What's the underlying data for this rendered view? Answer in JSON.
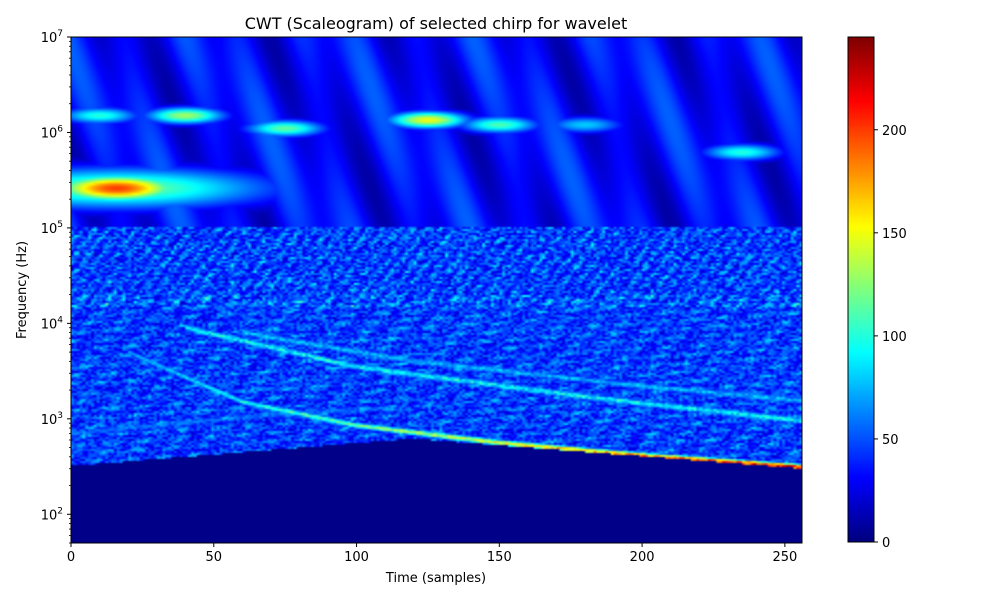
{
  "chart_data": {
    "type": "heatmap",
    "title": "CWT (Scaleogram) of selected chirp for wavelet",
    "xlabel": "Time (samples)",
    "ylabel": "Frequency (Hz)",
    "xlim": [
      0,
      256
    ],
    "ylim": [
      50,
      10000000
    ],
    "yscale": "log",
    "colormap": "jet",
    "x_ticks": [
      {
        "value": 0,
        "label": "0"
      },
      {
        "value": 50,
        "label": "50"
      },
      {
        "value": 100,
        "label": "100"
      },
      {
        "value": 150,
        "label": "150"
      },
      {
        "value": 200,
        "label": "200"
      },
      {
        "value": 250,
        "label": "250"
      }
    ],
    "y_ticks": [
      {
        "value": 100,
        "base": "10",
        "exp": "2"
      },
      {
        "value": 1000,
        "base": "10",
        "exp": "3"
      },
      {
        "value": 10000,
        "base": "10",
        "exp": "4"
      },
      {
        "value": 100000,
        "base": "10",
        "exp": "5"
      },
      {
        "value": 1000000,
        "base": "10",
        "exp": "6"
      },
      {
        "value": 10000000,
        "base": "10",
        "exp": "7"
      }
    ],
    "colorbar": {
      "range": [
        0,
        245
      ],
      "ticks": [
        {
          "value": 0,
          "label": "0"
        },
        {
          "value": 50,
          "label": "50"
        },
        {
          "value": 100,
          "label": "100"
        },
        {
          "value": 150,
          "label": "150"
        },
        {
          "value": 200,
          "label": "200"
        }
      ]
    },
    "features": {
      "main_chirp": {
        "points": [
          [
            20,
            5000
          ],
          [
            60,
            1500
          ],
          [
            100,
            850
          ],
          [
            150,
            560
          ],
          [
            200,
            410
          ],
          [
            256,
            310
          ]
        ],
        "peak": 240
      },
      "chirp_harmonics": [
        {
          "points": [
            [
              40,
              9000
            ],
            [
              100,
              3500
            ],
            [
              180,
              1700
            ],
            [
              256,
              950
            ]
          ],
          "level": 110
        },
        {
          "points": [
            [
              60,
              8000
            ],
            [
              120,
              4000
            ],
            [
              200,
              2200
            ],
            [
              256,
              1550
            ]
          ],
          "level": 90
        },
        {
          "points": [
            [
              0,
              700
            ],
            [
              70,
              1100
            ],
            [
              110,
              1300
            ]
          ],
          "level": 70
        }
      ],
      "floor_boundary": [
        [
          0,
          320
        ],
        [
          120,
          620
        ],
        [
          256,
          300
        ]
      ],
      "low_freq_blob": {
        "t": 16,
        "f": 260000,
        "peak": 200
      },
      "high_freq_blobs": [
        {
          "t": 40,
          "f": 1500000,
          "level": 130
        },
        {
          "t": 75,
          "f": 1100000,
          "level": 115
        },
        {
          "t": 125,
          "f": 1350000,
          "level": 150
        },
        {
          "t": 150,
          "f": 1200000,
          "level": 110
        },
        {
          "t": 10,
          "f": 1500000,
          "level": 100
        },
        {
          "t": 235,
          "f": 620000,
          "level": 100
        },
        {
          "t": 180,
          "f": 1200000,
          "level": 80
        }
      ],
      "noise_band": [
        15000,
        120000
      ],
      "background_level": 45
    }
  }
}
